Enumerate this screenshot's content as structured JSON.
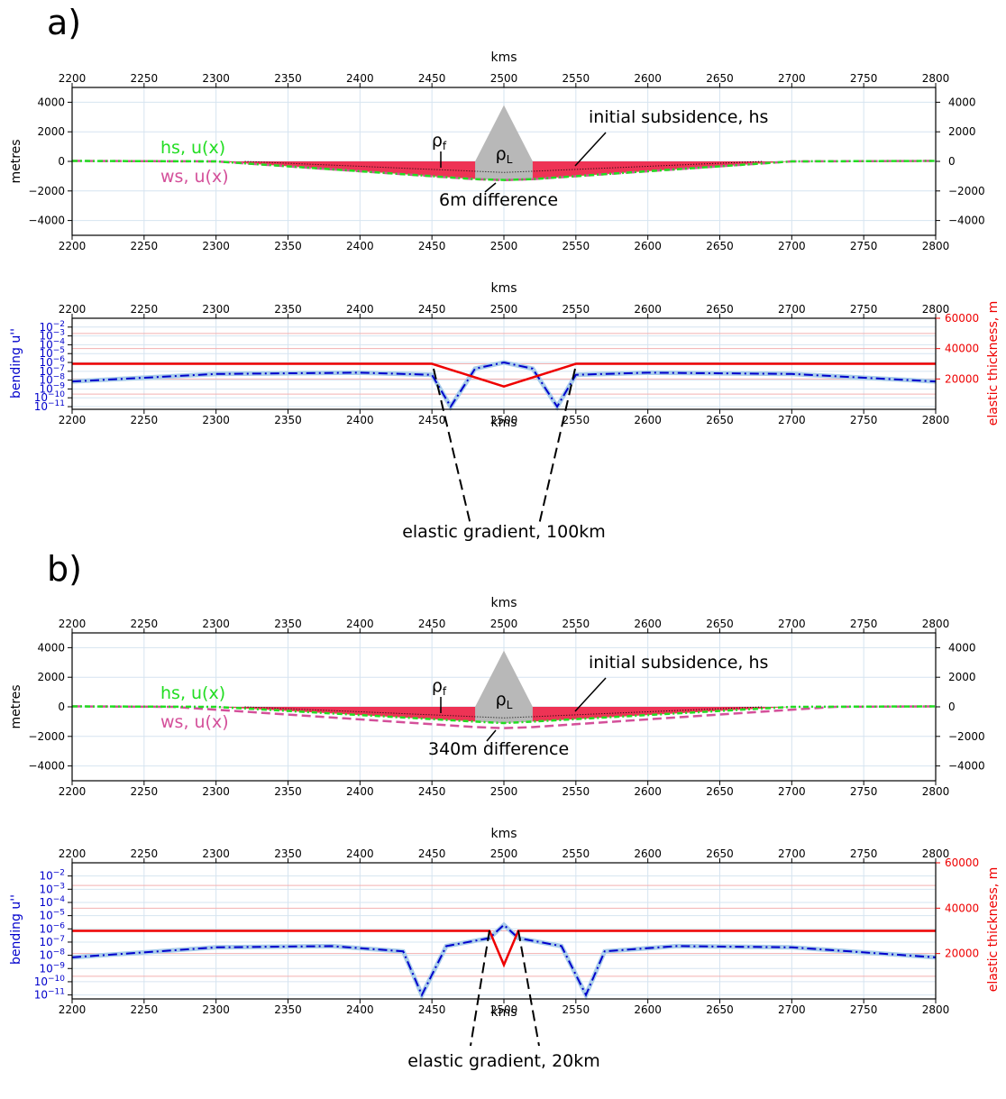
{
  "chart_data": [
    {
      "panel": "a",
      "type": "area",
      "xlabel": "kms",
      "ylabel": "metres",
      "xlim": [
        2200,
        2800
      ],
      "ylim": [
        -5000,
        5000
      ],
      "xticks": [
        2200,
        2250,
        2300,
        2350,
        2400,
        2450,
        2500,
        2550,
        2600,
        2650,
        2700,
        2750,
        2800
      ],
      "yticks": [
        -4000,
        -2000,
        0,
        2000,
        4000
      ],
      "load": {
        "label": "ρL",
        "x": [
          2480,
          2500,
          2520
        ],
        "y": [
          0,
          3800,
          0
        ]
      },
      "fill": {
        "label": "ρf"
      },
      "series": [
        {
          "name": "hs, u(x)",
          "color": "#22dd22",
          "x": [
            2200,
            2300,
            2480,
            2500,
            2520,
            2700,
            2800
          ],
          "y": [
            30,
            0,
            -1200,
            -1260,
            -1200,
            0,
            30
          ]
        },
        {
          "name": "ws, u(x)",
          "color": "#d4509a",
          "x": [
            2200,
            2300,
            2480,
            2500,
            2520,
            2700,
            2800
          ],
          "y": [
            30,
            0,
            -1205,
            -1266,
            -1205,
            0,
            30
          ]
        },
        {
          "name": "initial subsidence, hs",
          "color": "#000000",
          "x": [
            2320,
            2500,
            2680
          ],
          "y": [
            0,
            -750,
            0
          ]
        }
      ],
      "annotations": [
        {
          "text": "initial subsidence, hs"
        },
        {
          "text": "6m difference"
        }
      ]
    },
    {
      "panel": "a-bending",
      "type": "line",
      "xlabel": "kms",
      "ylabel": "bending u''",
      "y2label": "elastic thickness, m",
      "xlim": [
        2200,
        2800
      ],
      "ylog": true,
      "ylim": [
        5e-12,
        0.1
      ],
      "y2lim": [
        0,
        60000
      ],
      "xticks": [
        2200,
        2250,
        2300,
        2350,
        2400,
        2450,
        2500,
        2550,
        2600,
        2650,
        2700,
        2750,
        2800
      ],
      "y2ticks": [
        20000,
        40000,
        60000
      ],
      "series": [
        {
          "name": "bending",
          "color": "#0000cc",
          "x": [
            2200,
            2300,
            2400,
            2450,
            2463,
            2480,
            2500,
            2520,
            2537,
            2550,
            2600,
            2700,
            2800
          ],
          "y": [
            7e-09,
            5e-08,
            7e-08,
            4e-08,
            1e-11,
            2e-07,
            1e-06,
            2e-07,
            1e-11,
            4e-08,
            7e-08,
            5e-08,
            7e-09
          ]
        },
        {
          "name": "elastic thickness",
          "color": "#ee0000",
          "x": [
            2200,
            2450,
            2500,
            2550,
            2800
          ],
          "y": [
            30000,
            30000,
            15000,
            30000,
            30000
          ]
        }
      ],
      "annotations": [
        {
          "text": "elastic gradient, 100km"
        }
      ]
    },
    {
      "panel": "b",
      "type": "area",
      "xlabel": "kms",
      "ylabel": "metres",
      "xlim": [
        2200,
        2800
      ],
      "ylim": [
        -5000,
        5000
      ],
      "xticks": [
        2200,
        2250,
        2300,
        2350,
        2400,
        2450,
        2500,
        2550,
        2600,
        2650,
        2700,
        2750,
        2800
      ],
      "yticks": [
        -4000,
        -2000,
        0,
        2000,
        4000
      ],
      "load": {
        "label": "ρL",
        "x": [
          2480,
          2500,
          2520
        ],
        "y": [
          0,
          3800,
          0
        ]
      },
      "fill": {
        "label": "ρf"
      },
      "series": [
        {
          "name": "hs, u(x)",
          "color": "#22dd22",
          "x": [
            2200,
            2300,
            2480,
            2500,
            2520,
            2700,
            2800
          ],
          "y": [
            30,
            0,
            -1000,
            -1100,
            -1000,
            0,
            30
          ]
        },
        {
          "name": "ws, u(x)",
          "color": "#d4509a",
          "x": [
            2200,
            2270,
            2480,
            2500,
            2520,
            2730,
            2800
          ],
          "y": [
            30,
            0,
            -1370,
            -1440,
            -1370,
            0,
            30
          ]
        },
        {
          "name": "initial subsidence, hs",
          "color": "#000000",
          "x": [
            2320,
            2500,
            2680
          ],
          "y": [
            0,
            -750,
            0
          ]
        }
      ],
      "annotations": [
        {
          "text": "initial subsidence, hs"
        },
        {
          "text": "340m difference"
        }
      ]
    },
    {
      "panel": "b-bending",
      "type": "line",
      "xlabel": "kms",
      "ylabel": "bending u''",
      "y2label": "elastic thickness, m",
      "xlim": [
        2200,
        2800
      ],
      "ylog": true,
      "ylim": [
        5e-12,
        0.1
      ],
      "y2lim": [
        0,
        60000
      ],
      "xticks": [
        2200,
        2250,
        2300,
        2350,
        2400,
        2450,
        2500,
        2550,
        2600,
        2650,
        2700,
        2750,
        2800
      ],
      "y2ticks": [
        20000,
        40000,
        60000
      ],
      "series": [
        {
          "name": "bending",
          "color": "#0000cc",
          "x": [
            2200,
            2300,
            2380,
            2430,
            2443,
            2460,
            2490,
            2500,
            2510,
            2540,
            2557,
            2570,
            2620,
            2700,
            2800
          ],
          "y": [
            7e-09,
            4e-08,
            5e-08,
            2e-08,
            1e-11,
            5e-08,
            2e-07,
            2e-06,
            2e-07,
            5e-08,
            1e-11,
            2e-08,
            5e-08,
            4e-08,
            7e-09
          ]
        },
        {
          "name": "elastic thickness",
          "color": "#ee0000",
          "x": [
            2200,
            2490,
            2500,
            2510,
            2800
          ],
          "y": [
            30000,
            30000,
            15000,
            30000,
            30000
          ]
        }
      ],
      "annotations": [
        {
          "text": "elastic gradient, 20km"
        }
      ]
    }
  ],
  "panel_letters": [
    "a)",
    "b)"
  ],
  "colors": {
    "fill": "#ee3355",
    "load": "#b8b8b8",
    "bend_light": "#a9cdea",
    "grid": "#d6e4f0",
    "thick_grid": "#f3b0b0"
  }
}
